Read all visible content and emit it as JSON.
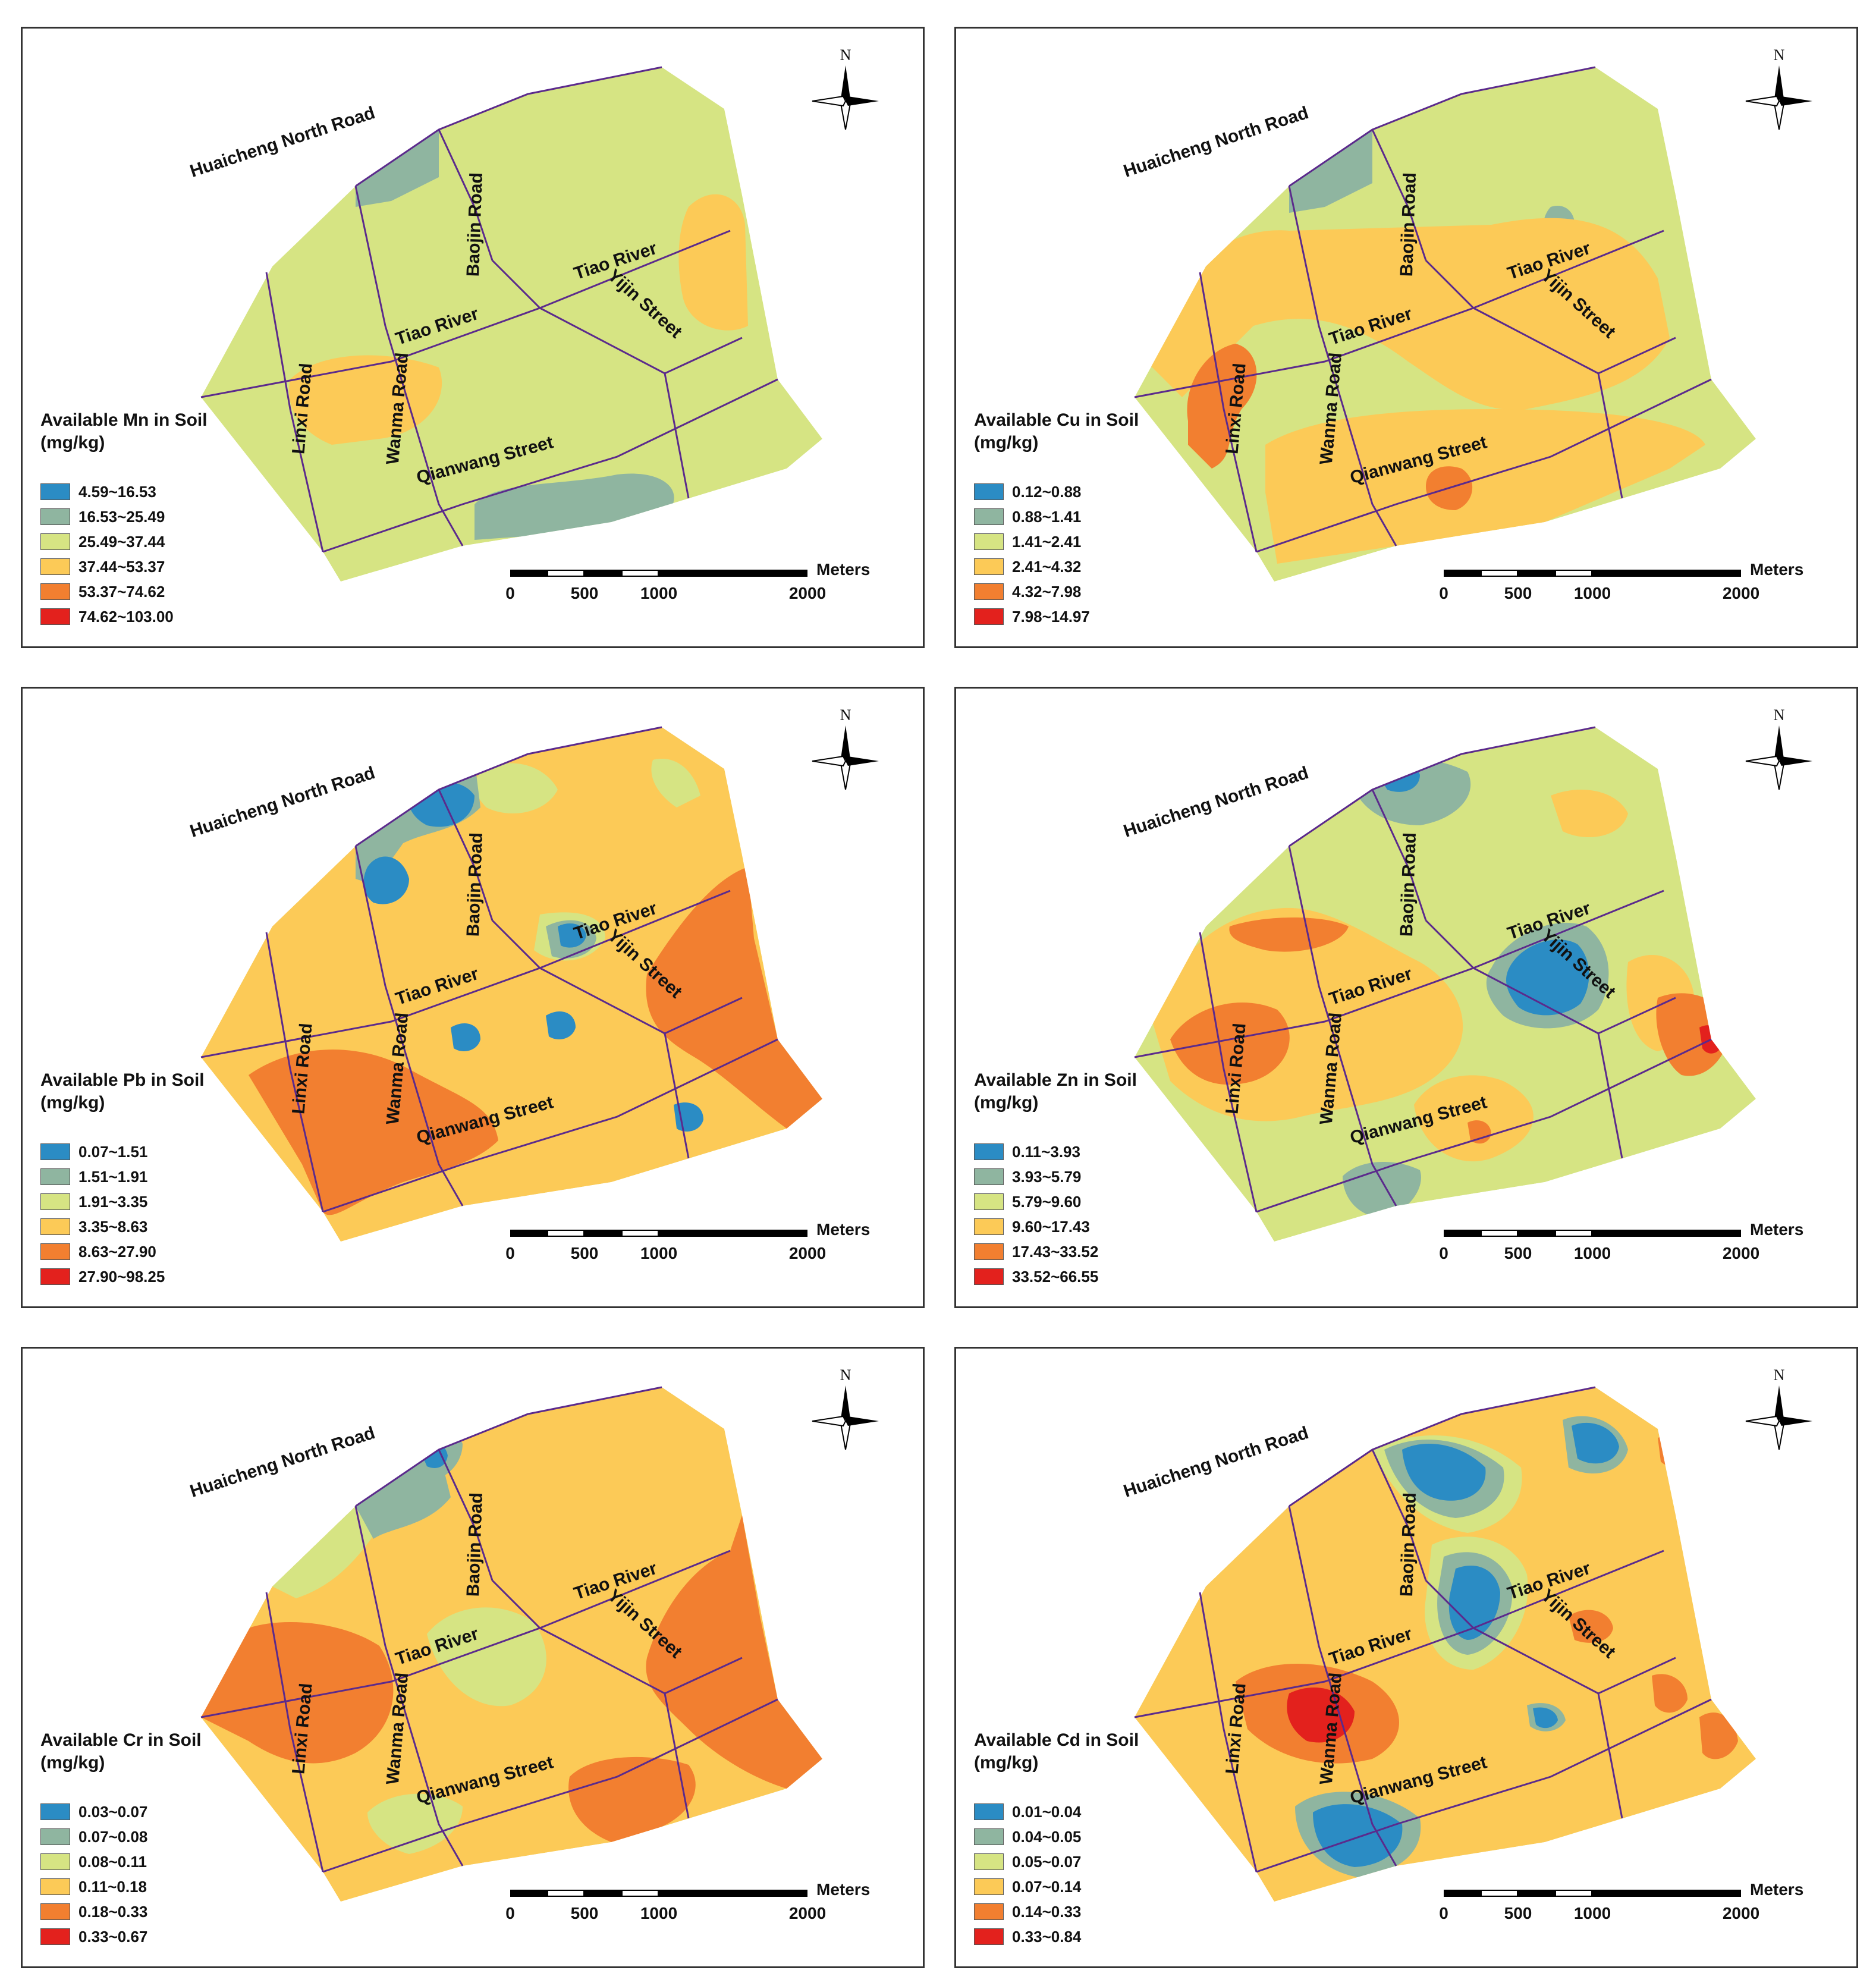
{
  "figure": {
    "panels": [
      {
        "id": "mn",
        "legend_title": "Available Mn in Soil\n(mg/kg)",
        "classes": [
          {
            "label": "4.59~16.53",
            "color": "#2b8cc4"
          },
          {
            "label": "16.53~25.49",
            "color": "#8fb5a0"
          },
          {
            "label": "25.49~37.44",
            "color": "#d6e483"
          },
          {
            "label": "37.44~53.37",
            "color": "#fcca57"
          },
          {
            "label": "53.37~74.62",
            "color": "#f27f30"
          },
          {
            "label": "74.62~103.00",
            "color": "#e3211d"
          }
        ]
      },
      {
        "id": "cu",
        "legend_title": "Available Cu in Soil\n(mg/kg)",
        "classes": [
          {
            "label": "0.12~0.88",
            "color": "#2b8cc4"
          },
          {
            "label": "0.88~1.41",
            "color": "#8fb5a0"
          },
          {
            "label": "1.41~2.41",
            "color": "#d6e483"
          },
          {
            "label": "2.41~4.32",
            "color": "#fcca57"
          },
          {
            "label": "4.32~7.98",
            "color": "#f27f30"
          },
          {
            "label": "7.98~14.97",
            "color": "#e3211d"
          }
        ]
      },
      {
        "id": "pb",
        "legend_title": "Available Pb in Soil\n(mg/kg)",
        "classes": [
          {
            "label": "0.07~1.51",
            "color": "#2b8cc4"
          },
          {
            "label": "1.51~1.91",
            "color": "#8fb5a0"
          },
          {
            "label": "1.91~3.35",
            "color": "#d6e483"
          },
          {
            "label": "3.35~8.63",
            "color": "#fcca57"
          },
          {
            "label": "8.63~27.90",
            "color": "#f27f30"
          },
          {
            "label": "27.90~98.25",
            "color": "#e3211d"
          }
        ]
      },
      {
        "id": "zn",
        "legend_title": "Available Zn in Soil\n(mg/kg)",
        "classes": [
          {
            "label": "0.11~3.93",
            "color": "#2b8cc4"
          },
          {
            "label": "3.93~5.79",
            "color": "#8fb5a0"
          },
          {
            "label": "5.79~9.60",
            "color": "#d6e483"
          },
          {
            "label": "9.60~17.43",
            "color": "#fcca57"
          },
          {
            "label": "17.43~33.52",
            "color": "#f27f30"
          },
          {
            "label": "33.52~66.55",
            "color": "#e3211d"
          }
        ]
      },
      {
        "id": "cr",
        "legend_title": "Available Cr in Soil\n(mg/kg)",
        "classes": [
          {
            "label": "0.03~0.07",
            "color": "#2b8cc4"
          },
          {
            "label": "0.07~0.08",
            "color": "#8fb5a0"
          },
          {
            "label": "0.08~0.11",
            "color": "#d6e483"
          },
          {
            "label": "0.11~0.18",
            "color": "#fcca57"
          },
          {
            "label": "0.18~0.33",
            "color": "#f27f30"
          },
          {
            "label": "0.33~0.67",
            "color": "#e3211d"
          }
        ]
      },
      {
        "id": "cd",
        "legend_title": "Available Cd in Soil\n(mg/kg)",
        "classes": [
          {
            "label": "0.01~0.04",
            "color": "#2b8cc4"
          },
          {
            "label": "0.04~0.05",
            "color": "#8fb5a0"
          },
          {
            "label": "0.05~0.07",
            "color": "#d6e483"
          },
          {
            "label": "0.07~0.14",
            "color": "#fcca57"
          },
          {
            "label": "0.14~0.33",
            "color": "#f27f30"
          },
          {
            "label": "0.33~0.84",
            "color": "#e3211d"
          }
        ]
      }
    ],
    "street_labels": {
      "huaicheng": "Huaicheng North Road",
      "baojin": "Baojin Road",
      "tiao_river": "Tiao River",
      "yijin": "Yijin Street",
      "linxi": "Linxi Road",
      "wanma": "Wanma Road",
      "qianwang": "Qianwang Street"
    },
    "north_label": "N",
    "scale_bar": {
      "unit": "Meters",
      "ticks": [
        "0",
        "500",
        "1000",
        "2000"
      ]
    },
    "road_color": "#5b2a8c"
  }
}
